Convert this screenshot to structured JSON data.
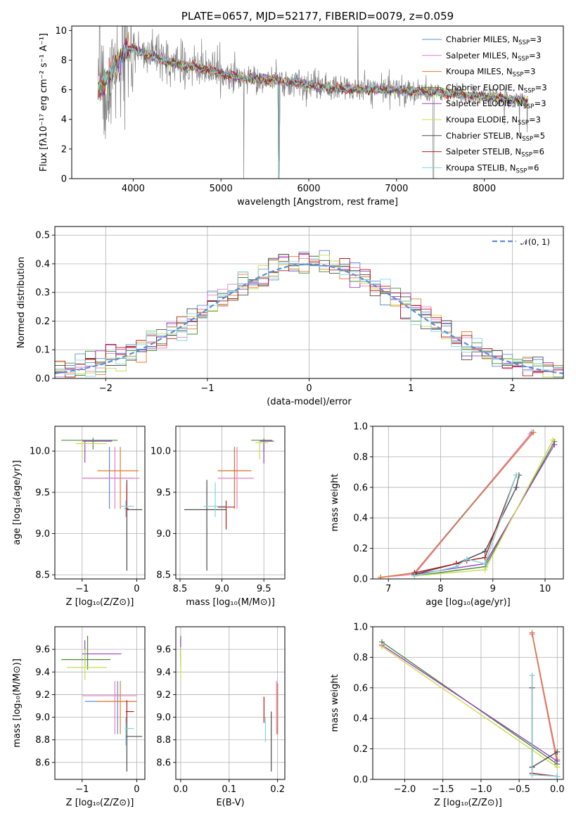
{
  "colors": {
    "Chabrier MILES": "#5b8dd6",
    "Salpeter MILES": "#e67fc0",
    "Kroupa MILES": "#e07b2e",
    "Chabrier ELODIE": "#4b8a3c",
    "Salpeter ELODIE": "#9b3fc4",
    "Kroupa ELODIE": "#c9dc4c",
    "Chabrier STELIB": "#4a4a4a",
    "Salpeter STELIB": "#b01a1a",
    "Kroupa STELIB": "#7fd6dd",
    "data": "#808080",
    "normal": "#5b8dd6"
  },
  "chart_data": [
    {
      "id": "spectrum",
      "type": "line",
      "title": "PLATE=0657, MJD=52177, FIBERID=0079, z=0.059",
      "xlabel": "wavelength [Angstrom, rest frame]",
      "ylabel": "Flux [fλ10⁻¹⁷ erg cm⁻² s⁻¹ A⁻¹]",
      "xlim": [
        3300,
        8900
      ],
      "ylim": [
        0,
        10.3
      ],
      "xticks": [
        "4000",
        "5000",
        "6000",
        "7000",
        "8000"
      ],
      "yticks": [
        "0",
        "2",
        "4",
        "6",
        "8",
        "10"
      ],
      "grid": false,
      "legend_position": "top-right",
      "continuum": [
        [
          3600,
          6.0
        ],
        [
          3700,
          6.7
        ],
        [
          3800,
          7.6
        ],
        [
          3900,
          8.6
        ],
        [
          4000,
          8.8
        ],
        [
          4100,
          8.5
        ],
        [
          4200,
          8.3
        ],
        [
          4400,
          7.9
        ],
        [
          4600,
          7.6
        ],
        [
          4800,
          7.4
        ],
        [
          5000,
          7.1
        ],
        [
          5200,
          6.8
        ],
        [
          5500,
          6.7
        ],
        [
          5800,
          6.5
        ],
        [
          6000,
          6.3
        ],
        [
          6300,
          6.1
        ],
        [
          6600,
          6.0
        ],
        [
          6900,
          6.0
        ],
        [
          7200,
          5.9
        ],
        [
          7500,
          5.8
        ],
        [
          7800,
          5.6
        ],
        [
          8100,
          5.5
        ],
        [
          8400,
          5.3
        ],
        [
          8500,
          5.2
        ]
      ],
      "series": [
        {
          "name": "Chabrier MILES, N_SSP=3",
          "label_base": "Chabrier MILES, N",
          "label_sub": "SSP",
          "label_tail": "=3"
        },
        {
          "name": "Salpeter MILES, N_SSP=3",
          "label_base": "Salpeter MILES, N",
          "label_sub": "SSP",
          "label_tail": "=3"
        },
        {
          "name": "Kroupa MILES, N_SSP=3",
          "label_base": "Kroupa MILES, N",
          "label_sub": "SSP",
          "label_tail": "=3"
        },
        {
          "name": "Chabrier ELODIE, N_SSP=3",
          "label_base": "Chabrier ELODIE, N",
          "label_sub": "SSP",
          "label_tail": "=3"
        },
        {
          "name": "Salpeter ELODIE, N_SSP=3",
          "label_base": "Salpeter ELODIE, N",
          "label_sub": "SSP",
          "label_tail": "=3"
        },
        {
          "name": "Kroupa ELODIE, N_SSP=3",
          "label_base": "Kroupa ELODIE, N",
          "label_sub": "SSP",
          "label_tail": "=3"
        },
        {
          "name": "Chabrier STELIB, N_SSP=5",
          "label_base": "Chabrier STELIB, N",
          "label_sub": "SSP",
          "label_tail": "=5"
        },
        {
          "name": "Salpeter STELIB, N_SSP=6",
          "label_base": "Salpeter STELIB, N",
          "label_sub": "SSP",
          "label_tail": "=6"
        },
        {
          "name": "Kroupa STELIB, N_SSP=6",
          "label_base": "Kroupa STELIB, N",
          "label_sub": "SSP",
          "label_tail": "=6"
        }
      ]
    },
    {
      "id": "residuals",
      "type": "line",
      "title": "",
      "xlabel": "(data-model)/error",
      "ylabel": "Normed distribution",
      "xlim": [
        -2.5,
        2.5
      ],
      "ylim": [
        0,
        0.53
      ],
      "xticks": [
        "−2",
        "−1",
        "0",
        "1",
        "2"
      ],
      "yticks": [
        "0.0",
        "0.1",
        "0.2",
        "0.3",
        "0.4",
        "0.5"
      ],
      "grid": true,
      "legend_position": "top-right",
      "legend": "𝒩(0, 1)",
      "normal": {
        "mean": 0,
        "sigma": 1
      }
    },
    {
      "id": "age_vs_Z",
      "type": "scatter",
      "xlabel": "Z [log₁₀(Z/Z⊙)]",
      "ylabel": "age  [log₁₀(age/yr)]",
      "xlim": [
        -1.5,
        0.15
      ],
      "ylim": [
        8.45,
        10.3
      ],
      "xticks": [
        "−1",
        "0"
      ],
      "yticks": [
        "8.5",
        "9.0",
        "9.5",
        "10.0"
      ],
      "grid": true,
      "points": [
        {
          "s": "Chabrier MILES",
          "x": -0.5,
          "y": 9.67,
          "ex": [
            -0.97,
            -0.05
          ],
          "ey": [
            9.3,
            10.05
          ]
        },
        {
          "s": "Salpeter MILES",
          "x": -0.4,
          "y": 9.67,
          "ex": [
            -1.0,
            0.05
          ],
          "ey": [
            9.3,
            10.05
          ]
        },
        {
          "s": "Kroupa MILES",
          "x": -0.3,
          "y": 9.76,
          "ex": [
            -0.72,
            0.03
          ],
          "ey": [
            9.3,
            10.05
          ]
        },
        {
          "s": "Chabrier ELODIE",
          "x": -0.8,
          "y": 10.13,
          "ex": [
            -1.38,
            -0.35
          ],
          "ey": [
            10.02,
            10.16
          ]
        },
        {
          "s": "Salpeter ELODIE",
          "x": -0.95,
          "y": 10.12,
          "ex": [
            -1.0,
            -0.45
          ],
          "ey": [
            9.86,
            10.13
          ]
        },
        {
          "s": "Kroupa ELODIE",
          "x": -1.0,
          "y": 10.09,
          "ex": [
            -1.12,
            -0.55
          ],
          "ey": [
            9.9,
            10.13
          ]
        },
        {
          "s": "Chabrier STELIB",
          "x": -0.18,
          "y": 9.29,
          "ex": [
            -0.18,
            0.1
          ],
          "ey": [
            8.55,
            9.65
          ]
        },
        {
          "s": "Salpeter STELIB",
          "x": -0.18,
          "y": 9.3,
          "ex": [
            -0.22,
            -0.15
          ],
          "ey": [
            9.2,
            9.6
          ]
        },
        {
          "s": "Kroupa STELIB",
          "x": -0.2,
          "y": 9.33,
          "ex": [
            -0.3,
            -0.05
          ],
          "ey": [
            9.2,
            9.4
          ]
        }
      ]
    },
    {
      "id": "age_vs_mass",
      "type": "scatter",
      "xlabel": "mass [log₁₀(M/M⊙)]",
      "ylabel": "",
      "xlim": [
        8.45,
        9.75
      ],
      "ylim": [
        8.45,
        10.3
      ],
      "xticks": [
        "8.5",
        "9.0",
        "9.5"
      ],
      "yticks": [
        "8.5",
        "9.0",
        "9.5",
        "10.0"
      ],
      "grid": true,
      "points": [
        {
          "s": "Chabrier MILES",
          "x": 9.15,
          "y": 9.76,
          "ex": [
            8.95,
            9.35
          ],
          "ey": [
            9.3,
            10.05
          ]
        },
        {
          "s": "Salpeter MILES",
          "x": 9.18,
          "y": 9.67,
          "ex": [
            8.95,
            9.38
          ],
          "ey": [
            9.3,
            10.05
          ]
        },
        {
          "s": "Kroupa MILES",
          "x": 9.15,
          "y": 9.76,
          "ex": [
            8.95,
            9.35
          ],
          "ey": [
            9.3,
            10.05
          ]
        },
        {
          "s": "Chabrier ELODIE",
          "x": 9.5,
          "y": 10.13,
          "ex": [
            9.35,
            9.6
          ],
          "ey": [
            10.0,
            10.15
          ]
        },
        {
          "s": "Salpeter ELODIE",
          "x": 9.5,
          "y": 10.12,
          "ex": [
            9.45,
            9.62
          ],
          "ey": [
            9.85,
            10.13
          ]
        },
        {
          "s": "Kroupa ELODIE",
          "x": 9.45,
          "y": 10.1,
          "ex": [
            9.4,
            9.55
          ],
          "ey": [
            9.9,
            10.12
          ]
        },
        {
          "s": "Chabrier STELIB",
          "x": 8.82,
          "y": 9.29,
          "ex": [
            8.55,
            9.05
          ],
          "ey": [
            8.55,
            9.65
          ]
        },
        {
          "s": "Salpeter STELIB",
          "x": 9.05,
          "y": 9.32,
          "ex": [
            8.95,
            9.15
          ],
          "ey": [
            9.05,
            9.4
          ]
        },
        {
          "s": "Kroupa STELIB",
          "x": 8.92,
          "y": 9.33,
          "ex": [
            8.78,
            9.05
          ],
          "ey": [
            9.2,
            9.62
          ]
        }
      ]
    },
    {
      "id": "weight_vs_age",
      "type": "line",
      "xlabel": "age  [log₁₀(age/yr)]",
      "ylabel": "mass weight",
      "xlim": [
        6.7,
        10.35
      ],
      "ylim": [
        0,
        1.0
      ],
      "xticks": [
        "7",
        "8",
        "9",
        "10"
      ],
      "yticks": [
        "0.0",
        "0.2",
        "0.4",
        "0.6",
        "0.8",
        "1.0"
      ],
      "grid": true,
      "lines": [
        {
          "s": "Chabrier MILES",
          "pts": [
            [
              6.85,
              0.01
            ],
            [
              7.5,
              0.04
            ],
            [
              9.75,
              0.96
            ]
          ]
        },
        {
          "s": "Salpeter MILES",
          "pts": [
            [
              6.85,
              0.01
            ],
            [
              7.5,
              0.03
            ],
            [
              9.72,
              0.95
            ]
          ]
        },
        {
          "s": "Kroupa MILES",
          "pts": [
            [
              6.85,
              0.01
            ],
            [
              7.5,
              0.04
            ],
            [
              9.78,
              0.96
            ]
          ]
        },
        {
          "s": "Chabrier ELODIE",
          "pts": [
            [
              7.5,
              0.02
            ],
            [
              8.85,
              0.08
            ],
            [
              10.18,
              0.9
            ]
          ]
        },
        {
          "s": "Salpeter ELODIE",
          "pts": [
            [
              7.5,
              0.03
            ],
            [
              8.85,
              0.1
            ],
            [
              10.18,
              0.88
            ]
          ]
        },
        {
          "s": "Kroupa ELODIE",
          "pts": [
            [
              7.5,
              0.02
            ],
            [
              8.85,
              0.06
            ],
            [
              10.15,
              0.91
            ]
          ]
        },
        {
          "s": "Chabrier STELIB",
          "pts": [
            [
              7.5,
              0.03
            ],
            [
              8.3,
              0.1
            ],
            [
              8.85,
              0.18
            ],
            [
              9.45,
              0.6
            ],
            [
              9.5,
              0.68
            ]
          ]
        },
        {
          "s": "Salpeter STELIB",
          "pts": [
            [
              7.5,
              0.04
            ],
            [
              8.3,
              0.1
            ],
            [
              8.5,
              0.12
            ],
            [
              8.85,
              0.14
            ],
            [
              9.45,
              0.68
            ]
          ]
        },
        {
          "s": "Kroupa STELIB",
          "pts": [
            [
              7.5,
              0.02
            ],
            [
              8.3,
              0.08
            ],
            [
              8.5,
              0.13
            ],
            [
              8.85,
              0.1
            ],
            [
              9.45,
              0.68
            ]
          ]
        }
      ]
    },
    {
      "id": "mass_vs_Z",
      "type": "scatter",
      "xlabel": "Z [log₁₀(Z/Z⊙)]",
      "ylabel": "mass [log₁₀(M/M⊙)]",
      "xlim": [
        -1.5,
        0.15
      ],
      "ylim": [
        8.45,
        9.8
      ],
      "xticks": [
        "−1",
        "0"
      ],
      "yticks": [
        "8.6",
        "8.8",
        "9.0",
        "9.2",
        "9.4",
        "9.6"
      ],
      "grid": true,
      "points": [
        {
          "s": "Chabrier MILES",
          "x": -0.35,
          "y": 9.14,
          "ex": [
            -0.95,
            0.0
          ],
          "ey": [
            8.85,
            9.32
          ]
        },
        {
          "s": "Salpeter MILES",
          "x": -0.4,
          "y": 9.19,
          "ex": [
            -1.0,
            0.0
          ],
          "ey": [
            8.85,
            9.32
          ]
        },
        {
          "s": "Kroupa MILES",
          "x": -0.3,
          "y": 9.14,
          "ex": [
            -0.72,
            0.0
          ],
          "ey": [
            8.85,
            9.32
          ]
        },
        {
          "s": "Chabrier ELODIE",
          "x": -0.9,
          "y": 9.51,
          "ex": [
            -1.38,
            -0.48
          ],
          "ey": [
            9.42,
            9.72
          ]
        },
        {
          "s": "Salpeter ELODIE",
          "x": -0.95,
          "y": 9.56,
          "ex": [
            -1.0,
            -0.28
          ],
          "ey": [
            9.45,
            9.68
          ]
        },
        {
          "s": "Kroupa ELODIE",
          "x": -0.95,
          "y": 9.44,
          "ex": [
            -1.28,
            -0.55
          ],
          "ey": [
            9.33,
            9.6
          ]
        },
        {
          "s": "Chabrier STELIB",
          "x": -0.18,
          "y": 8.83,
          "ex": [
            -0.2,
            0.1
          ],
          "ey": [
            8.52,
            9.05
          ]
        },
        {
          "s": "Salpeter STELIB",
          "x": -0.18,
          "y": 9.05,
          "ex": [
            -0.2,
            -0.05
          ],
          "ey": [
            8.95,
            9.15
          ]
        },
        {
          "s": "Kroupa STELIB",
          "x": -0.2,
          "y": 8.9,
          "ex": [
            -0.22,
            -0.05
          ],
          "ey": [
            8.75,
            9.0
          ]
        }
      ]
    },
    {
      "id": "mass_vs_ebv",
      "type": "scatter",
      "xlabel": "E(B-V)",
      "ylabel": "",
      "xlim": [
        -0.01,
        0.215
      ],
      "ylim": [
        8.45,
        9.8
      ],
      "xticks": [
        "0.0",
        "0.1",
        "0.2"
      ],
      "yticks": [
        "8.6",
        "8.8",
        "9.0",
        "9.2",
        "9.4",
        "9.6"
      ],
      "grid": true,
      "points": [
        {
          "s": "Chabrier MILES",
          "x": 0.2,
          "y": 9.13,
          "ey": [
            8.85,
            9.3
          ]
        },
        {
          "s": "Salpeter MILES",
          "x": 0.198,
          "y": 9.19,
          "ey": [
            8.85,
            9.32
          ]
        },
        {
          "s": "Kroupa MILES",
          "x": 0.2,
          "y": 9.14,
          "ey": [
            8.85,
            9.3
          ]
        },
        {
          "s": "Chabrier ELODIE",
          "x": 0.0,
          "y": 9.51,
          "ey": [
            9.45,
            9.72
          ]
        },
        {
          "s": "Salpeter ELODIE",
          "x": 0.0,
          "y": 9.56,
          "ey": [
            9.5,
            9.7
          ]
        },
        {
          "s": "Kroupa ELODIE",
          "x": 0.0,
          "y": 9.44,
          "ey": [
            9.33,
            9.62
          ]
        },
        {
          "s": "Chabrier STELIB",
          "x": 0.187,
          "y": 8.83,
          "ey": [
            8.52,
            9.05
          ]
        },
        {
          "s": "Salpeter STELIB",
          "x": 0.172,
          "y": 9.05,
          "ey": [
            8.95,
            9.18
          ]
        },
        {
          "s": "Kroupa STELIB",
          "x": 0.175,
          "y": 8.9,
          "ey": [
            8.78,
            9.0
          ]
        }
      ]
    },
    {
      "id": "weight_vs_Z",
      "type": "line",
      "xlabel": "Z [log₁₀(Z/Z⊙)]",
      "ylabel": "mass weight",
      "xlim": [
        -2.42,
        0.08
      ],
      "ylim": [
        0,
        1.0
      ],
      "xticks": [
        "−2.0",
        "−1.5",
        "−1.0",
        "−0.5",
        "0.0"
      ],
      "yticks": [
        "0.0",
        "0.2",
        "0.4",
        "0.6",
        "0.8",
        "1.0"
      ],
      "grid": true,
      "lines": [
        {
          "s": "Chabrier MILES",
          "pts": [
            [
              -0.33,
              0.96
            ],
            [
              0.0,
              0.12
            ]
          ]
        },
        {
          "s": "Salpeter MILES",
          "pts": [
            [
              -0.33,
              0.95
            ],
            [
              0.0,
              0.1
            ]
          ]
        },
        {
          "s": "Kroupa MILES",
          "pts": [
            [
              -0.33,
              0.96
            ],
            [
              0.0,
              0.13
            ]
          ]
        },
        {
          "s": "Chabrier ELODIE",
          "pts": [
            [
              -2.3,
              0.9
            ],
            [
              0.0,
              0.1
            ]
          ]
        },
        {
          "s": "Salpeter ELODIE",
          "pts": [
            [
              -2.3,
              0.88
            ],
            [
              0.0,
              0.12
            ]
          ]
        },
        {
          "s": "Kroupa ELODIE",
          "pts": [
            [
              -2.3,
              0.87
            ],
            [
              0.0,
              0.08
            ]
          ]
        },
        {
          "s": "Chabrier STELIB",
          "pts": [
            [
              -0.33,
              0.6
            ],
            [
              -0.33,
              0.08
            ],
            [
              0.0,
              0.18
            ]
          ]
        },
        {
          "s": "Salpeter STELIB",
          "pts": [
            [
              -0.33,
              0.68
            ],
            [
              -0.33,
              0.04
            ],
            [
              0.0,
              0.02
            ]
          ]
        },
        {
          "s": "Kroupa STELIB",
          "pts": [
            [
              -0.33,
              0.68
            ],
            [
              -0.33,
              0.03
            ],
            [
              0.0,
              0.02
            ]
          ]
        }
      ]
    }
  ]
}
